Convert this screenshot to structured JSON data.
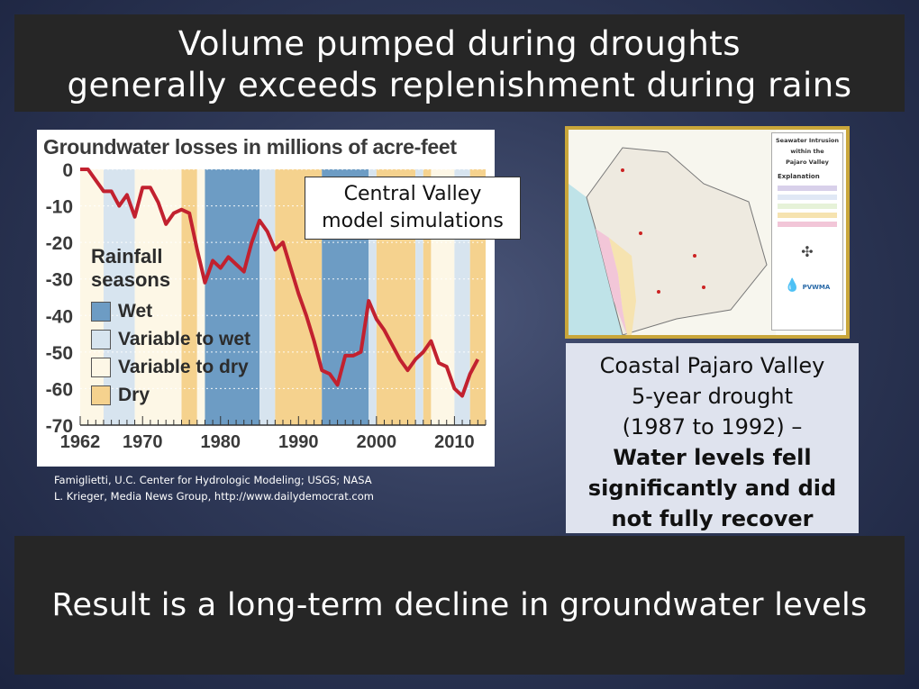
{
  "slide": {
    "title_line1": "Volume pumped during droughts",
    "title_line2": "generally exceeds replenishment during rains",
    "bottom_text": "Result is a long-term decline in groundwater levels"
  },
  "chart_panel": {
    "title": "Groundwater losses in millions of acre-feet",
    "callout_line1": "Central Valley",
    "callout_line2": "model simulations",
    "legend_title_line1": "Rainfall",
    "legend_title_line2": "seasons",
    "legend": [
      {
        "label": "Wet",
        "color": "#6d9cc4"
      },
      {
        "label": "Variable to wet",
        "color": "#d7e4ef"
      },
      {
        "label": "Variable to dry",
        "color": "#fdf7e6"
      },
      {
        "label": "Dry",
        "color": "#f5d28e"
      }
    ],
    "credit_line1": "Famiglietti, U.C. Center for Hydrologic Modeling; USGS; NASA",
    "credit_line2": "L. Krieger, Media News Group, http://www.dailydemocrat.com"
  },
  "chart_data": {
    "type": "line",
    "title": "Groundwater losses in millions of acre-feet",
    "xlim": [
      1962,
      2014
    ],
    "ylim": [
      -70,
      0
    ],
    "xticks": [
      "1962",
      "1970",
      "1980",
      "1990",
      "2000",
      "2010"
    ],
    "yticks": [
      "0",
      "-10",
      "-20",
      "-30",
      "-40",
      "-50",
      "-60",
      "-70"
    ],
    "series": [
      {
        "color": "#c2212f",
        "x": [
          1962,
          1963,
          1964,
          1965,
          1966,
          1967,
          1968,
          1969,
          1970,
          1971,
          1972,
          1973,
          1974,
          1975,
          1976,
          1977,
          1978,
          1979,
          1980,
          1981,
          1982,
          1983,
          1984,
          1985,
          1986,
          1987,
          1988,
          1989,
          1990,
          1991,
          1992,
          1993,
          1994,
          1995,
          1996,
          1997,
          1998,
          1999,
          2000,
          2001,
          2002,
          2003,
          2004,
          2005,
          2006,
          2007,
          2008,
          2009,
          2010,
          2011,
          2012,
          2013
        ],
        "y": [
          0,
          0,
          -3,
          -6,
          -6,
          -10,
          -7,
          -13,
          -5,
          -5,
          -9,
          -15,
          -12,
          -11,
          -12,
          -22,
          -31,
          -25,
          -27,
          -24,
          -26,
          -28,
          -20,
          -14,
          -17,
          -22,
          -20,
          -27,
          -34,
          -40,
          -47,
          -55,
          -56,
          -59,
          -51,
          -51,
          -50,
          -36,
          -41,
          -44,
          -48,
          -52,
          -55,
          -52,
          -50,
          -47,
          -53,
          -54,
          -60,
          -62,
          -56,
          -52
        ]
      }
    ],
    "seasons": [
      {
        "start": 1962,
        "end": 1965,
        "type": "Variable to dry"
      },
      {
        "start": 1965,
        "end": 1969,
        "type": "Variable to wet"
      },
      {
        "start": 1969,
        "end": 1975,
        "type": "Variable to dry"
      },
      {
        "start": 1975,
        "end": 1977,
        "type": "Dry"
      },
      {
        "start": 1977,
        "end": 1978,
        "type": "Variable to dry"
      },
      {
        "start": 1978,
        "end": 1985,
        "type": "Wet"
      },
      {
        "start": 1985,
        "end": 1987,
        "type": "Variable to wet"
      },
      {
        "start": 1987,
        "end": 1993,
        "type": "Dry"
      },
      {
        "start": 1993,
        "end": 1999,
        "type": "Wet"
      },
      {
        "start": 1999,
        "end": 2000,
        "type": "Variable to wet"
      },
      {
        "start": 2000,
        "end": 2005,
        "type": "Dry"
      },
      {
        "start": 2005,
        "end": 2006,
        "type": "Variable to wet"
      },
      {
        "start": 2006,
        "end": 2007,
        "type": "Dry"
      },
      {
        "start": 2007,
        "end": 2010,
        "type": "Variable to dry"
      },
      {
        "start": 2010,
        "end": 2012,
        "type": "Variable to wet"
      },
      {
        "start": 2012,
        "end": 2014,
        "type": "Dry"
      }
    ]
  },
  "map": {
    "legend_title_line1": "Seawater Intrusion",
    "legend_title_line2": "within the",
    "legend_title_line3": "Pajaro Valley",
    "explanation": "Explanation",
    "logo_text": "PVWMA"
  },
  "info_box": {
    "line1": "Coastal Pajaro Valley",
    "line2": "5-year drought",
    "line3": "(1987 to 1992) –",
    "bold_line1": "Water levels fell",
    "bold_line2": "significantly and did",
    "bold_line3": "not fully recover"
  }
}
